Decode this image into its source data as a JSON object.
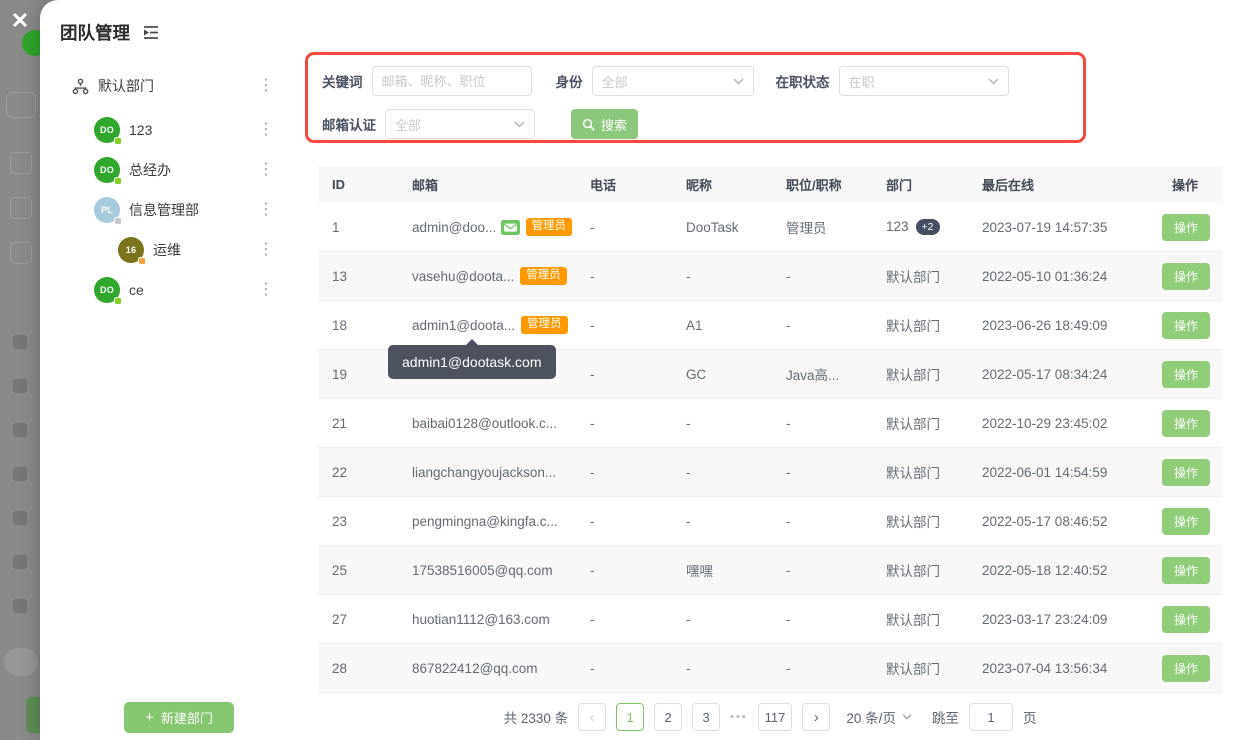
{
  "colors": {
    "accent_green": "#85c76f",
    "button_green": "#8fcd78",
    "badge_orange": "#ff9900",
    "highlight_red": "#f5483f",
    "verified_green": "#6ec562",
    "count_badge_navy": "#445062",
    "tooltip_grey": "#4d535e"
  },
  "overlay": {
    "close_label": "✕"
  },
  "modal": {
    "title": "团队管理",
    "sidebar": {
      "root_label": "默认部门",
      "items": [
        {
          "label": "123",
          "avatar_text": "DO",
          "avatar_color": "#2fa62c",
          "dot_color": "#7ed321",
          "indent": false
        },
        {
          "label": "总经办",
          "avatar_text": "DO",
          "avatar_color": "#2fa62c",
          "dot_color": "#7ed321",
          "indent": false
        },
        {
          "label": "信息管理部",
          "avatar_text": "PL",
          "avatar_color": "#a5cbdd",
          "dot_color": "#c8c8c8",
          "indent": false
        },
        {
          "label": "运维",
          "avatar_text": "16",
          "avatar_color": "#7b741d",
          "dot_color": "#f2a33c",
          "indent": true
        },
        {
          "label": "ce",
          "avatar_text": "DO",
          "avatar_color": "#2fa62c",
          "dot_color": "#7ed321",
          "indent": false
        }
      ],
      "new_department_label": "新建部门"
    },
    "filters": {
      "keyword_label": "关键词",
      "keyword_placeholder": "邮箱、昵称、职位",
      "identity_label": "身份",
      "identity_value": "全部",
      "status_label": "在职状态",
      "status_value": "在职",
      "email_verify_label": "邮箱认证",
      "email_verify_value": "全部",
      "search_label": "搜索"
    },
    "table": {
      "headers": [
        "ID",
        "邮箱",
        "电话",
        "昵称",
        "职位/职称",
        "部门",
        "最后在线",
        "操作"
      ],
      "admin_badge_label": "管理员",
      "action_label": "操作",
      "tooltip_text": "admin1@dootask.com",
      "rows": [
        {
          "id": "1",
          "email": "admin@doo...",
          "verified": true,
          "admin": true,
          "phone": "-",
          "nickname": "DooTask",
          "title": "管理员",
          "dept": "123",
          "dept_extra": "+2",
          "last_online": "2023-07-19 14:57:35"
        },
        {
          "id": "13",
          "email": "vasehu@doota...",
          "verified": false,
          "admin": true,
          "phone": "-",
          "nickname": "-",
          "title": "-",
          "dept": "默认部门",
          "dept_extra": "",
          "last_online": "2022-05-10 01:36:24"
        },
        {
          "id": "18",
          "email": "admin1@doota...",
          "verified": false,
          "admin": true,
          "phone": "-",
          "nickname": "A1",
          "title": "-",
          "dept": "默认部门",
          "dept_extra": "",
          "last_online": "2023-06-26 18:49:09"
        },
        {
          "id": "19",
          "email": "",
          "verified": false,
          "admin": false,
          "phone": "-",
          "nickname": "GC",
          "title": "Java高...",
          "dept": "默认部门",
          "dept_extra": "",
          "last_online": "2022-05-17 08:34:24"
        },
        {
          "id": "21",
          "email": "baibai0128@outlook.c...",
          "verified": false,
          "admin": false,
          "phone": "-",
          "nickname": "-",
          "title": "-",
          "dept": "默认部门",
          "dept_extra": "",
          "last_online": "2022-10-29 23:45:02"
        },
        {
          "id": "22",
          "email": "liangchangyoujackson...",
          "verified": false,
          "admin": false,
          "phone": "-",
          "nickname": "-",
          "title": "-",
          "dept": "默认部门",
          "dept_extra": "",
          "last_online": "2022-06-01 14:54:59"
        },
        {
          "id": "23",
          "email": "pengmingna@kingfa.c...",
          "verified": false,
          "admin": false,
          "phone": "-",
          "nickname": "-",
          "title": "-",
          "dept": "默认部门",
          "dept_extra": "",
          "last_online": "2022-05-17 08:46:52"
        },
        {
          "id": "25",
          "email": "17538516005@qq.com",
          "verified": false,
          "admin": false,
          "phone": "-",
          "nickname": "嘿嘿",
          "title": "-",
          "dept": "默认部门",
          "dept_extra": "",
          "last_online": "2022-05-18 12:40:52"
        },
        {
          "id": "27",
          "email": "huotian1112@163.com",
          "verified": false,
          "admin": false,
          "phone": "-",
          "nickname": "-",
          "title": "-",
          "dept": "默认部门",
          "dept_extra": "",
          "last_online": "2023-03-17 23:24:09"
        },
        {
          "id": "28",
          "email": "867822412@qq.com",
          "verified": false,
          "admin": false,
          "phone": "-",
          "nickname": "-",
          "title": "-",
          "dept": "默认部门",
          "dept_extra": "",
          "last_online": "2023-07-04 13:56:34"
        }
      ]
    },
    "pagination": {
      "total_label": "共 2330 条",
      "pages": [
        "1",
        "2",
        "3"
      ],
      "active_page": "1",
      "ellipsis": "•••",
      "last_page": "117",
      "page_size_label": "20 条/页",
      "jump_label": "跳至",
      "jump_value": "1",
      "jump_suffix": "页"
    }
  }
}
